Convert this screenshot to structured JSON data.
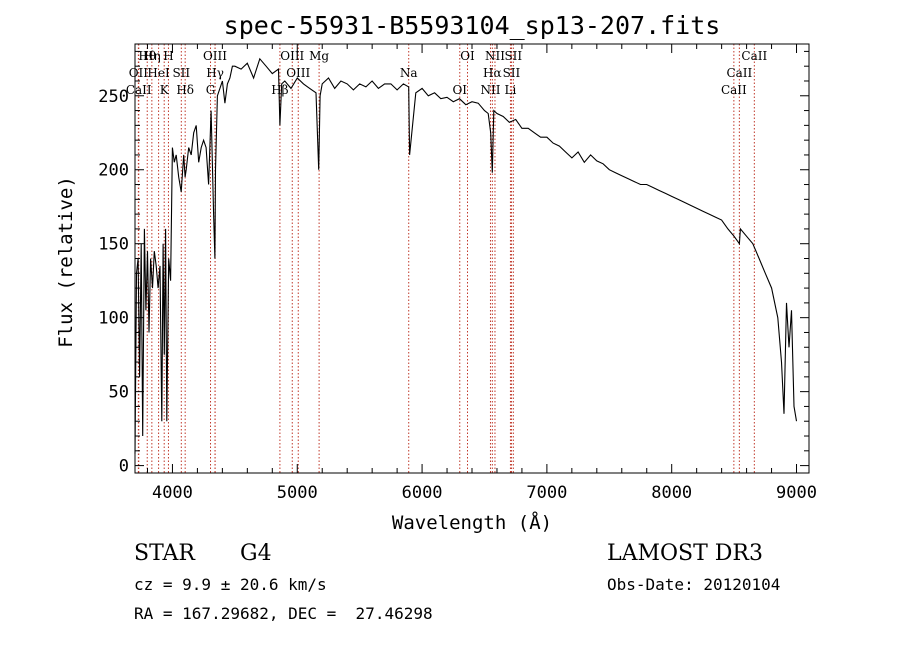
{
  "chart_data": {
    "type": "line",
    "title": "spec-55931-B5593104_sp13-207.fits",
    "xlabel": "Wavelength (Å)",
    "ylabel": "Flux (relative)",
    "xlim": [
      3700,
      9100
    ],
    "ylim": [
      -5,
      285
    ],
    "xticks": [
      4000,
      5000,
      6000,
      7000,
      8000,
      9000
    ],
    "yticks": [
      0,
      50,
      100,
      150,
      200,
      250
    ],
    "grid": false,
    "series": [
      {
        "color": "#000000",
        "x": [
          3700,
          3712,
          3725,
          3737,
          3750,
          3762,
          3775,
          3787,
          3800,
          3812,
          3825,
          3840,
          3855,
          3870,
          3885,
          3900,
          3915,
          3925,
          3935,
          3945,
          3955,
          3970,
          3985,
          4000,
          4015,
          4030,
          4050,
          4070,
          4090,
          4101,
          4110,
          4130,
          4150,
          4170,
          4190,
          4210,
          4230,
          4250,
          4270,
          4290,
          4310,
          4330,
          4340,
          4345,
          4360,
          4380,
          4400,
          4420,
          4440,
          4460,
          4480,
          4500,
          4550,
          4600,
          4650,
          4700,
          4750,
          4800,
          4850,
          4861,
          4875,
          4900,
          4950,
          5000,
          5050,
          5100,
          5150,
          5172,
          5183,
          5200,
          5250,
          5300,
          5350,
          5400,
          5450,
          5500,
          5550,
          5600,
          5650,
          5700,
          5750,
          5800,
          5850,
          5893,
          5900,
          5950,
          6000,
          6050,
          6100,
          6150,
          6200,
          6250,
          6300,
          6350,
          6400,
          6450,
          6500,
          6530,
          6550,
          6563,
          6575,
          6600,
          6650,
          6700,
          6750,
          6800,
          6850,
          6900,
          6950,
          7000,
          7050,
          7100,
          7150,
          7200,
          7250,
          7300,
          7350,
          7400,
          7450,
          7500,
          7550,
          7600,
          7650,
          7700,
          7750,
          7800,
          7850,
          7900,
          7950,
          8000,
          8050,
          8100,
          8150,
          8200,
          8250,
          8300,
          8350,
          8400,
          8450,
          8500,
          8542,
          8550,
          8600,
          8650,
          8700,
          8750,
          8800,
          8850,
          8880,
          8900,
          8920,
          8940,
          8960,
          8980,
          9000
        ],
        "y": [
          8,
          130,
          140,
          60,
          150,
          20,
          160,
          105,
          145,
          90,
          140,
          120,
          145,
          135,
          120,
          135,
          30,
          150,
          75,
          160,
          30,
          140,
          125,
          215,
          205,
          210,
          195,
          185,
          210,
          195,
          200,
          215,
          210,
          225,
          230,
          205,
          215,
          220,
          215,
          190,
          240,
          170,
          140,
          200,
          250,
          255,
          260,
          245,
          258,
          262,
          270,
          270,
          268,
          272,
          262,
          275,
          270,
          265,
          268,
          230,
          258,
          260,
          255,
          262,
          258,
          255,
          252,
          200,
          250,
          258,
          262,
          255,
          260,
          258,
          254,
          258,
          256,
          260,
          255,
          258,
          258,
          254,
          258,
          256,
          210,
          252,
          255,
          250,
          252,
          248,
          249,
          246,
          248,
          244,
          246,
          245,
          240,
          238,
          225,
          198,
          240,
          238,
          236,
          232,
          234,
          228,
          228,
          225,
          222,
          222,
          218,
          216,
          212,
          208,
          212,
          205,
          210,
          206,
          204,
          200,
          198,
          196,
          194,
          192,
          190,
          190,
          188,
          186,
          184,
          182,
          180,
          178,
          176,
          174,
          172,
          170,
          168,
          166,
          160,
          155,
          150,
          160,
          155,
          150,
          140,
          130,
          120,
          100,
          70,
          35,
          110,
          80,
          105,
          40,
          30
        ]
      }
    ],
    "lines": [
      {
        "label": "Hθ",
        "x": 3798
      },
      {
        "label": "OII",
        "x": 3727
      },
      {
        "label": "CaII",
        "x": 3730
      },
      {
        "label": "Hη",
        "x": 3835
      },
      {
        "label": "HeI",
        "x": 3889
      },
      {
        "label": "K",
        "x": 3934
      },
      {
        "label": "H",
        "x": 3968
      },
      {
        "label": "SII",
        "x": 4071
      },
      {
        "label": "Hδ",
        "x": 4102
      },
      {
        "label": "OIII",
        "x": 4341
      },
      {
        "label": "Hγ",
        "x": 4342
      },
      {
        "label": "G",
        "x": 4305
      },
      {
        "label": "OIII",
        "x": 4960
      },
      {
        "label": "OIII",
        "x": 5008
      },
      {
        "label": "Hβ",
        "x": 4861
      },
      {
        "label": "Mg",
        "x": 5175
      },
      {
        "label": "Na",
        "x": 5893
      },
      {
        "label": "OI",
        "x": 6302
      },
      {
        "label": "OI",
        "x": 6364
      },
      {
        "label": "Hα",
        "x": 6563
      },
      {
        "label": "NII",
        "x": 6548
      },
      {
        "label": "NII",
        "x": 6584
      },
      {
        "label": "SII",
        "x": 6716
      },
      {
        "label": "Li",
        "x": 6708
      },
      {
        "label": "SII",
        "x": 6731
      },
      {
        "label": "CaII",
        "x": 8542
      },
      {
        "label": "CaII",
        "x": 8498
      },
      {
        "label": "CaII",
        "x": 8662
      }
    ]
  },
  "info": {
    "object_class": "STAR",
    "subclass": "G4",
    "survey": "LAMOST DR3",
    "redshift": "cz = 9.9 ± 20.6 km/s",
    "obs_date": "Obs-Date: 20120104",
    "coords": "RA = 167.29682, DEC =  27.46298"
  }
}
